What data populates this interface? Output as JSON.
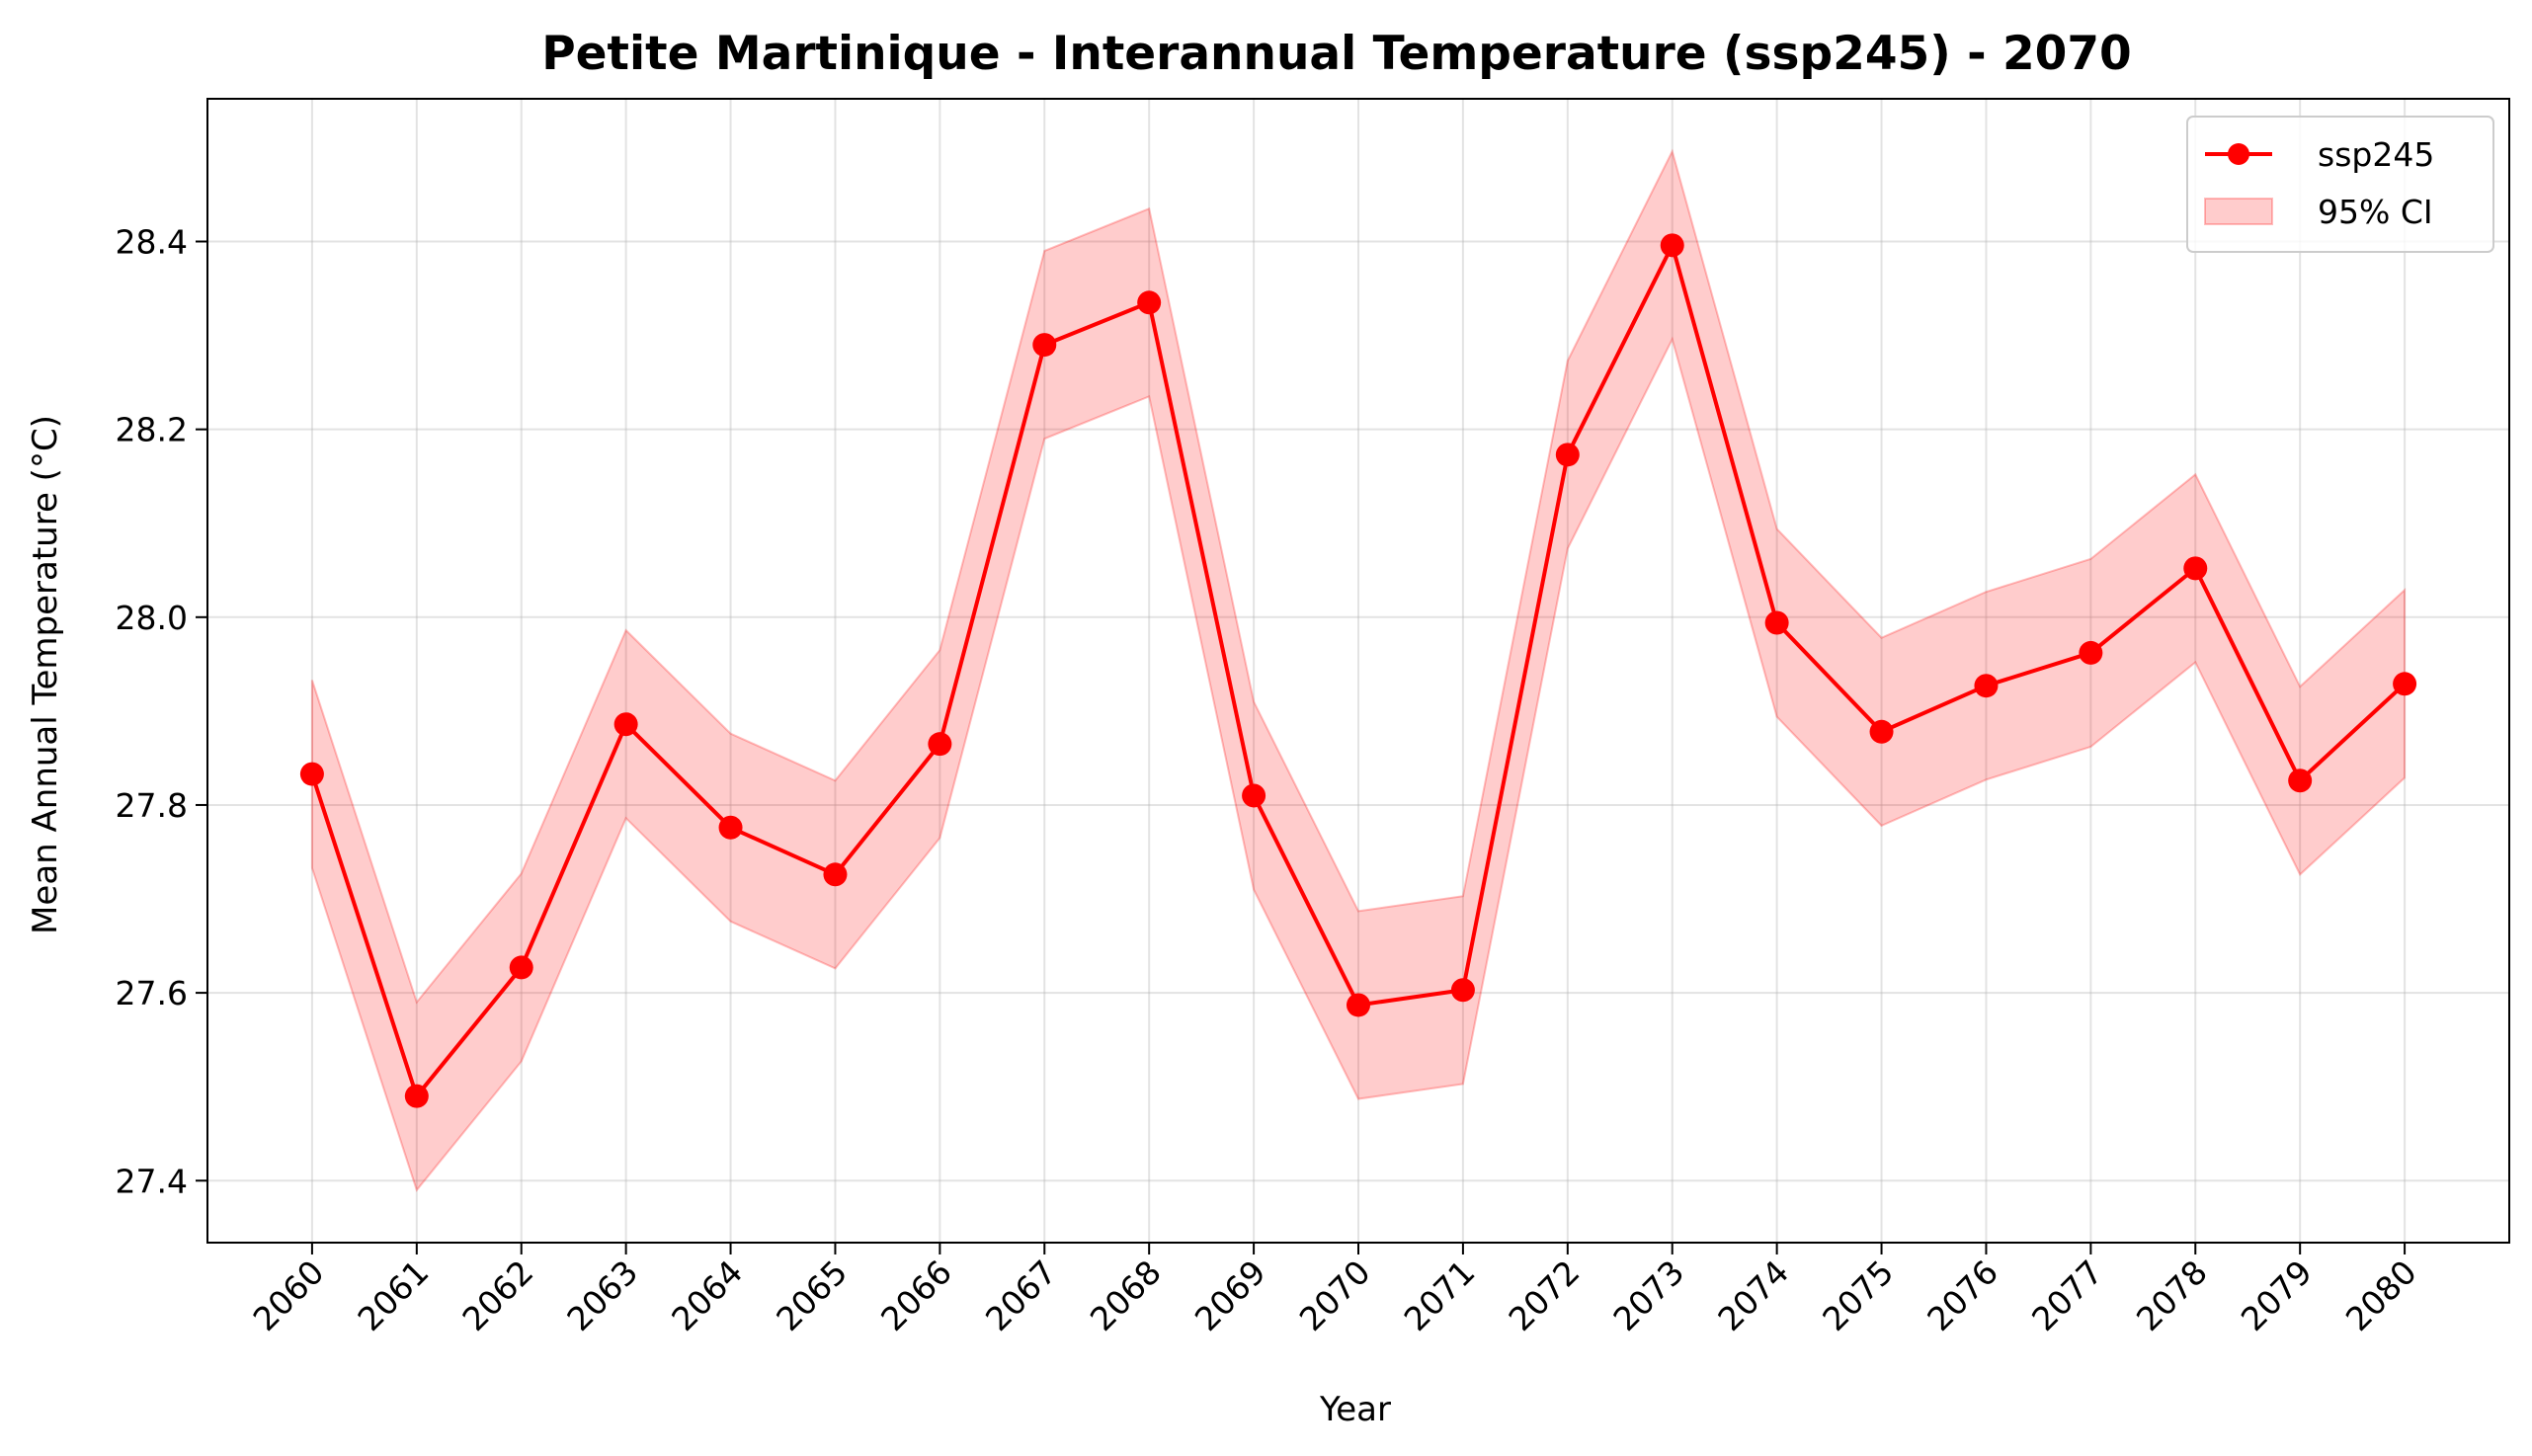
{
  "chart_data": {
    "type": "line",
    "title": "Petite Martinique - Interannual Temperature (ssp245) - 2070",
    "xlabel": "Year",
    "ylabel": "Mean Annual Temperature (°C)",
    "x": [
      2060,
      2061,
      2062,
      2063,
      2064,
      2065,
      2066,
      2067,
      2068,
      2069,
      2070,
      2071,
      2072,
      2073,
      2074,
      2075,
      2076,
      2077,
      2078,
      2079,
      2080
    ],
    "x_tick_labels": [
      "2060",
      "2061",
      "2062",
      "2063",
      "2064",
      "2065",
      "2066",
      "2067",
      "2068",
      "2069",
      "2070",
      "2071",
      "2072",
      "2073",
      "2074",
      "2075",
      "2076",
      "2077",
      "2078",
      "2079",
      "2080"
    ],
    "y_ticks": [
      27.4,
      27.6,
      27.8,
      28.0,
      28.2,
      28.4
    ],
    "y_tick_labels": [
      "27.4",
      "27.6",
      "27.8",
      "28.0",
      "28.2",
      "28.4"
    ],
    "ylim": [
      27.334,
      28.552
    ],
    "xlim": [
      2059.0,
      2081.0
    ],
    "grid": true,
    "legend_position": "top-right",
    "series": [
      {
        "name": "ssp245",
        "color": "#ff0000",
        "marker": "circle",
        "values": [
          27.833,
          27.49,
          27.627,
          27.886,
          27.776,
          27.726,
          27.865,
          28.29,
          28.335,
          27.81,
          27.587,
          27.603,
          28.173,
          28.396,
          27.994,
          27.878,
          27.927,
          27.962,
          28.052,
          27.826,
          27.929
        ]
      }
    ],
    "confidence_band": {
      "name": "95% CI",
      "color": "#ff0000",
      "opacity": 0.2,
      "lower": [
        27.733,
        27.39,
        27.527,
        27.786,
        27.676,
        27.626,
        27.765,
        28.19,
        28.235,
        27.71,
        27.487,
        27.503,
        28.073,
        28.296,
        27.894,
        27.778,
        27.827,
        27.862,
        27.952,
        27.726,
        27.829
      ],
      "upper": [
        27.933,
        27.59,
        27.727,
        27.986,
        27.876,
        27.826,
        27.965,
        28.39,
        28.435,
        27.91,
        27.687,
        27.703,
        28.273,
        28.496,
        28.094,
        27.978,
        28.027,
        28.062,
        28.152,
        27.926,
        28.029
      ]
    }
  }
}
